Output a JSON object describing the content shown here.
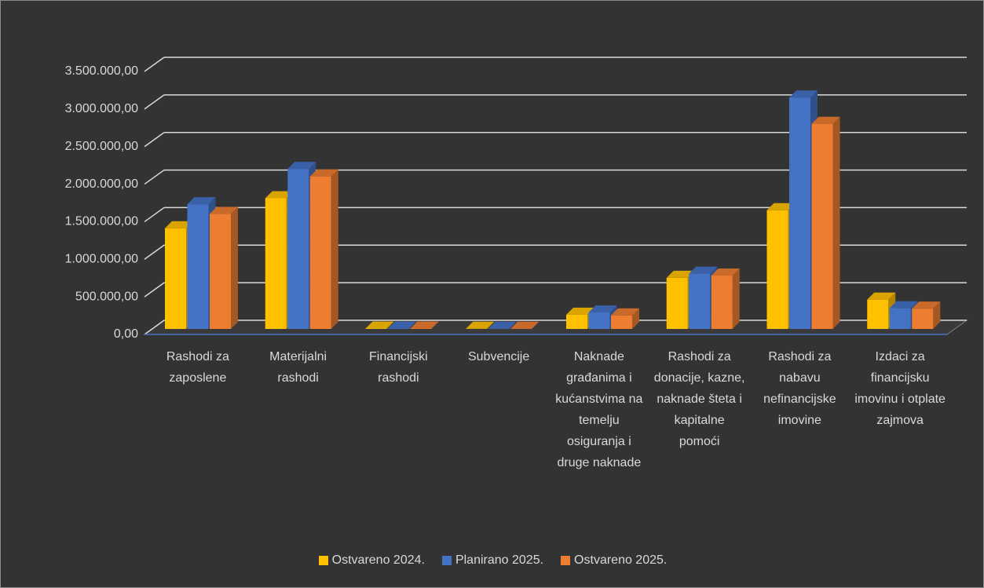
{
  "chart_data": {
    "type": "bar3d",
    "categories": [
      "Rashodi za zaposlene",
      "Materijalni rashodi",
      "Financijski rashodi",
      "Subvencije",
      "Naknade građanima i kućanstvima na temelju osiguranja i druge naknade",
      "Rashodi za donacije, kazne, naknade šteta i kapitalne pomoći",
      "Rashodi za nabavu nefinancijske imovine",
      "Izdaci za financijsku imovinu i otplate zajmova"
    ],
    "series": [
      {
        "name": "Ostvareno 2024.",
        "color": "#ffc000",
        "values": [
          1340000,
          1740000,
          5000,
          2000,
          190000,
          680000,
          1580000,
          390000
        ]
      },
      {
        "name": "Planirano 2025.",
        "color": "#4472c4",
        "values": [
          1660000,
          2130000,
          5000,
          3000,
          220000,
          735000,
          3080000,
          275000
        ]
      },
      {
        "name": "Ostvareno 2025.",
        "color": "#ed7d31",
        "values": [
          1530000,
          2030000,
          5000,
          3000,
          180000,
          710000,
          2730000,
          270000
        ]
      }
    ],
    "ylim": [
      0,
      3500000
    ],
    "yticks": [
      {
        "value": 0,
        "label": "0,00"
      },
      {
        "value": 500000,
        "label": "500.000,00"
      },
      {
        "value": 1000000,
        "label": "1.000.000,00"
      },
      {
        "value": 1500000,
        "label": "1.500.000,00"
      },
      {
        "value": 2000000,
        "label": "2.000.000,00"
      },
      {
        "value": 2500000,
        "label": "2.500.000,00"
      },
      {
        "value": 3000000,
        "label": "3.000.000,00"
      },
      {
        "value": 3500000,
        "label": "3.500.000,00"
      }
    ],
    "grid": true,
    "legend": "bottom"
  }
}
